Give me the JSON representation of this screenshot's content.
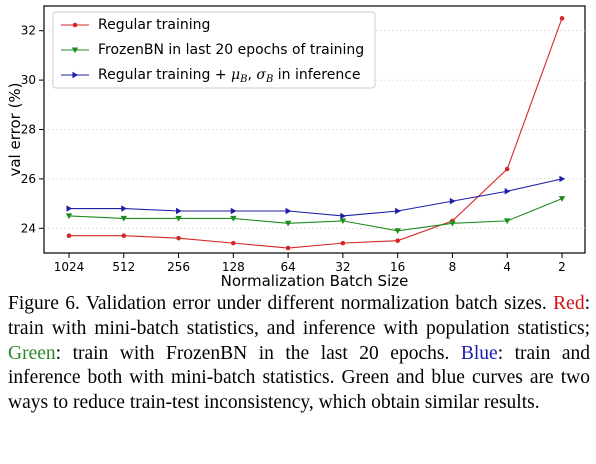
{
  "chart_data": {
    "type": "line",
    "title": "",
    "xlabel": "Normalization Batch Size",
    "ylabel": "val error (%)",
    "categories": [
      "1024",
      "512",
      "256",
      "128",
      "64",
      "32",
      "16",
      "8",
      "4",
      "2"
    ],
    "ylim": [
      23.0,
      33.0
    ],
    "yticks": [
      "24",
      "26",
      "28",
      "30",
      "32"
    ],
    "grid": true,
    "legend_position": "top-left",
    "series": [
      {
        "name": "Regular training",
        "color": "#d62728",
        "marker": "circle",
        "values": [
          23.7,
          23.7,
          23.6,
          23.4,
          23.2,
          23.4,
          23.5,
          24.3,
          26.4,
          32.5
        ]
      },
      {
        "name": "FrozenBN in last 20 epochs of training",
        "color": "#1e8c1e",
        "marker": "triangle-down",
        "values": [
          24.5,
          24.4,
          24.4,
          24.4,
          24.2,
          24.3,
          23.9,
          24.2,
          24.3,
          25.2
        ]
      },
      {
        "name": "Regular training + μB, σB in inference",
        "color": "#1f1fa8",
        "marker": "triangle-right",
        "legend_prefix": "Regular training + ",
        "legend_mu": "μ",
        "legend_mu_sub": "B",
        "legend_sep": ", ",
        "legend_sigma": "σ",
        "legend_sigma_sub": "B",
        "legend_suffix": " in inference",
        "values": [
          24.8,
          24.8,
          24.7,
          24.7,
          24.7,
          24.5,
          24.7,
          25.1,
          25.5,
          26.0
        ]
      }
    ]
  },
  "caption": {
    "lead": "Figure 6. Validation error under different normalization batch sizes. ",
    "red_word": "Red",
    "red_text": ": train with mini-batch statistics, and inference with population statistics; ",
    "green_word": "Green",
    "green_text": ": train with FrozenBN in the last 20 epochs. ",
    "blue_word": "Blue",
    "blue_text": ": train and inference both with mini-batch statistics. Green and blue curves are two ways to reduce train-test inconsistency, which obtain similar results."
  }
}
